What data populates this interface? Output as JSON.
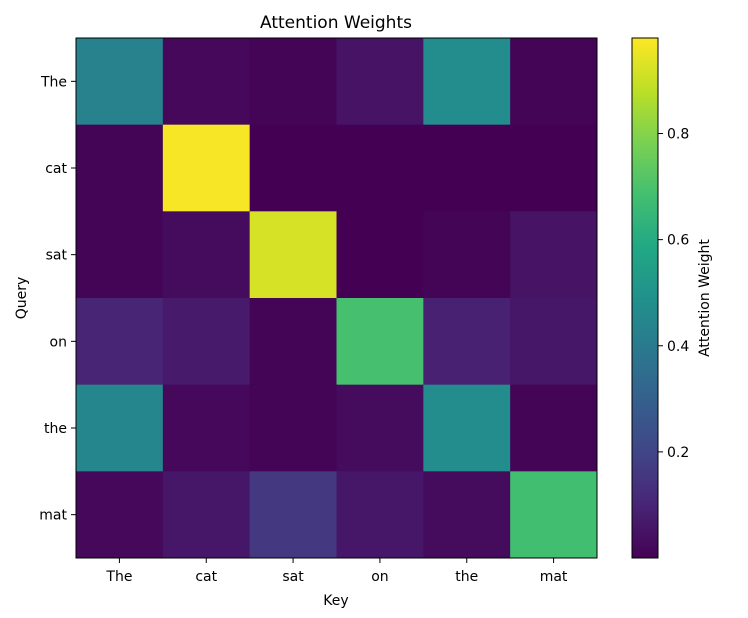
{
  "chart_data": {
    "type": "heatmap",
    "title": "Attention Weights",
    "xlabel": "Key",
    "ylabel": "Query",
    "x_categories": [
      "The",
      "cat",
      "sat",
      "on",
      "the",
      "mat"
    ],
    "y_categories": [
      "The",
      "cat",
      "sat",
      "on",
      "the",
      "mat"
    ],
    "values": [
      [
        0.43,
        0.02,
        0.01,
        0.05,
        0.47,
        0.01
      ],
      [
        0.01,
        0.97,
        0.0,
        0.0,
        0.0,
        0.0
      ],
      [
        0.01,
        0.03,
        0.92,
        0.0,
        0.01,
        0.05
      ],
      [
        0.1,
        0.07,
        0.01,
        0.69,
        0.09,
        0.06
      ],
      [
        0.45,
        0.02,
        0.01,
        0.03,
        0.47,
        0.01
      ],
      [
        0.02,
        0.06,
        0.16,
        0.06,
        0.03,
        0.68
      ]
    ],
    "colormap": "viridis",
    "vmin": 0.0,
    "vmax": 0.98,
    "colorbar": {
      "label": "Attention Weight",
      "ticks": [
        0.2,
        0.4,
        0.6,
        0.8
      ],
      "tick_labels": [
        "0.2",
        "0.4",
        "0.6",
        "0.8"
      ]
    },
    "grid": false,
    "legend": "none"
  }
}
